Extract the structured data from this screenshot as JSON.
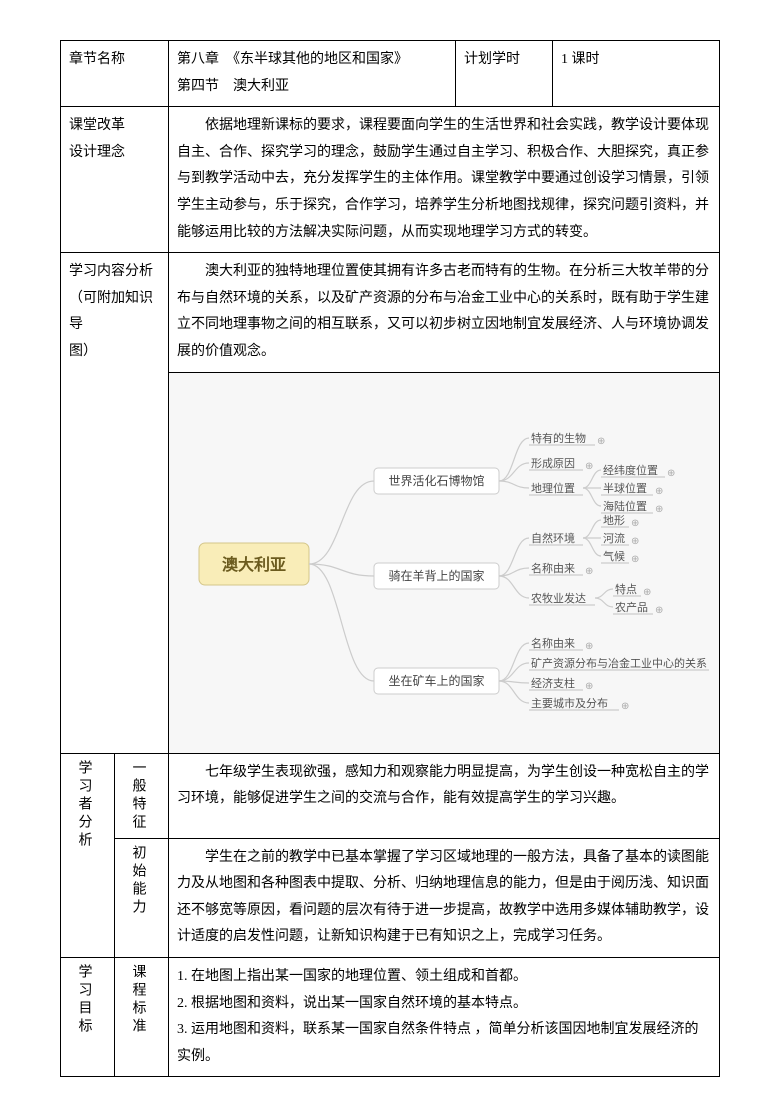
{
  "header": {
    "chapter_label": "章节名称",
    "chapter_value_line1": "第八章　《东半球其他的地区和国家》",
    "chapter_value_line2": "第四节　澳大利亚",
    "plan_label": "计划学时",
    "plan_value": "1 课时"
  },
  "reform": {
    "label_line1": "课堂改革",
    "label_line2": "设计理念",
    "text": "依据地理新课标的要求，课程要面向学生的生活世界和社会实践，教学设计要体现自主、合作、探究学习的理念，鼓励学生通过自主学习、积极合作、大胆探究，真正参与到教学活动中去，充分发挥学生的主体作用。课堂教学中要通过创设学习情景，引领学生主动参与，乐于探究，合作学习，培养学生分析地图找规律，探究问题引资料，并能够运用比较的方法解决实际问题，从而实现地理学习方式的转变。"
  },
  "content_analysis": {
    "label_line1": "学习内容分析",
    "label_line2": "（可附加知识导",
    "label_line3": "图）",
    "text": "澳大利亚的独特地理位置使其拥有许多古老而特有的生物。在分析三大牧羊带的分布与自然环境的关系，以及矿产资源的分布与冶金工业中心的关系时，既有助于学生建立不同地理事物之间的相互联系，又可以初步树立因地制宜发展经济、人与环境协调发展的价值观念。"
  },
  "diagram": {
    "root": "澳大利亚",
    "branches": [
      {
        "label": "世界活化石博物馆",
        "children": [
          {
            "label": "特有的生物",
            "sub": []
          },
          {
            "label": "形成原因",
            "sub": []
          },
          {
            "label": "地理位置",
            "sub": [
              "经纬度位置",
              "半球位置",
              "海陆位置"
            ]
          }
        ]
      },
      {
        "label": "骑在羊背上的国家",
        "children": [
          {
            "label": "自然环境",
            "sub": [
              "地形",
              "河流",
              "气候"
            ]
          },
          {
            "label": "名称由来",
            "sub": []
          },
          {
            "label": "农牧业发达",
            "sub": [
              "特点",
              "农产品"
            ]
          }
        ]
      },
      {
        "label": "坐在矿车上的国家",
        "children": [
          {
            "label": "名称由来",
            "sub": []
          },
          {
            "label": "矿产资源分布与冶金工业中心的关系",
            "sub": []
          },
          {
            "label": "经济支柱",
            "sub": []
          },
          {
            "label": "主要城市及分布",
            "sub": []
          }
        ]
      }
    ],
    "colors": {
      "bg": "#f7f7f7",
      "root_fill": "#f9edb8",
      "root_stroke": "#d4c68a",
      "node_fill": "#ffffff",
      "node_stroke": "#cccccc",
      "line": "#cccccc"
    }
  },
  "learner": {
    "section_label": "学习者分析",
    "rows": [
      {
        "sublabel": "一般特征",
        "text": "七年级学生表现欲强，感知力和观察能力明显提高，为学生创设一种宽松自主的学习环境，能够促进学生之间的交流与合作，能有效提高学生的学习兴趣。"
      },
      {
        "sublabel": "初始能力",
        "text": "学生在之前的教学中已基本掌握了学习区域地理的一般方法，具备了基本的读图能力及从地图和各种图表中提取、分析、归纳地理信息的能力，但是由于阅历浅、知识面还不够宽等原因，看问题的层次有待于进一步提高，故教学中选用多媒体辅助教学，设计适度的启发性问题，让新知识构建于已有知识之上，完成学习任务。"
      }
    ]
  },
  "objectives": {
    "section_label": "学习目标",
    "sublabel": "课程标准",
    "items": [
      "1. 在地图上指出某一国家的地理位置、领土组成和首都。",
      "2. 根据地图和资料，说出某一国家自然环境的基本特点。",
      "3. 运用地图和资料，联系某一国家自然条件特点 ，简单分析该国因地制宜发展经济的实例。"
    ]
  }
}
